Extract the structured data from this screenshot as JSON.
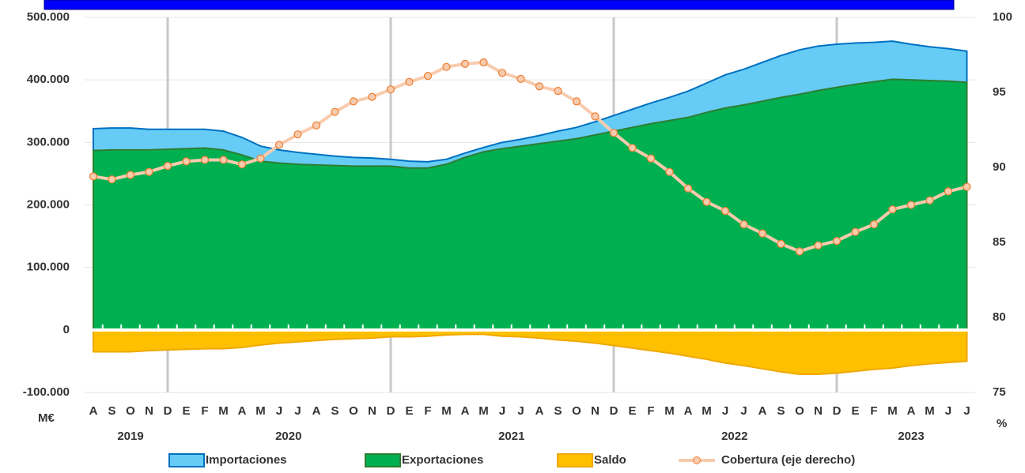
{
  "chart_data": {
    "type": "area",
    "categories": [
      "A",
      "S",
      "O",
      "N",
      "D",
      "E",
      "F",
      "M",
      "A",
      "M",
      "J",
      "J",
      "A",
      "S",
      "O",
      "N",
      "D",
      "E",
      "F",
      "M",
      "A",
      "M",
      "J",
      "J",
      "A",
      "S",
      "O",
      "N",
      "D",
      "E",
      "F",
      "M",
      "A",
      "M",
      "J",
      "J",
      "A",
      "S",
      "O",
      "N",
      "D",
      "E",
      "F",
      "M",
      "A",
      "M",
      "J",
      "J"
    ],
    "years": [
      "2019",
      "2020",
      "2021",
      "2022",
      "2023"
    ],
    "y_unit": "M€",
    "y2_unit": "%",
    "series": [
      {
        "name": "Importaciones",
        "type": "area",
        "color": "#66ccf5",
        "stroke": "#0070c0",
        "values": [
          322000,
          323000,
          323000,
          321000,
          321000,
          321000,
          321000,
          318000,
          308000,
          294000,
          288000,
          284000,
          281000,
          278000,
          276000,
          275000,
          273000,
          270000,
          269000,
          273000,
          283000,
          292000,
          300000,
          305000,
          311000,
          318000,
          324000,
          333000,
          343000,
          353000,
          363000,
          372000,
          382000,
          395000,
          408000,
          417000,
          428000,
          439000,
          448000,
          454000,
          457000,
          459000,
          460000,
          462000,
          457000,
          453000,
          450000,
          446000
        ]
      },
      {
        "name": "Exportaciones",
        "type": "area",
        "color": "#00b050",
        "stroke": "#2e7d32",
        "values": [
          287000,
          288000,
          288000,
          288000,
          289000,
          290000,
          291000,
          288000,
          280000,
          270000,
          267000,
          265000,
          264000,
          263000,
          262000,
          262000,
          262000,
          259000,
          259000,
          265000,
          276000,
          285000,
          290000,
          294000,
          298000,
          302000,
          306000,
          312000,
          318000,
          324000,
          330000,
          335000,
          340000,
          348000,
          355000,
          360000,
          366000,
          372000,
          377000,
          383000,
          388000,
          393000,
          397000,
          401000,
          400000,
          399000,
          398000,
          396000
        ]
      },
      {
        "name": "Saldo",
        "type": "area",
        "color": "#ffc000",
        "stroke": "#f0a800",
        "values": [
          -35000,
          -35000,
          -35000,
          -33000,
          -32000,
          -31000,
          -30000,
          -30000,
          -28000,
          -24000,
          -21000,
          -19000,
          -17000,
          -15000,
          -14000,
          -13000,
          -11000,
          -11000,
          -10000,
          -8000,
          -7000,
          -7000,
          -10000,
          -11000,
          -13000,
          -16000,
          -18000,
          -21000,
          -25000,
          -29000,
          -33000,
          -37000,
          -42000,
          -47000,
          -53000,
          -57000,
          -62000,
          -67000,
          -71000,
          -71000,
          -69000,
          -66000,
          -63000,
          -61000,
          -57000,
          -54000,
          -52000,
          -50000
        ]
      },
      {
        "name": "Cobertura (eje derecho)",
        "type": "line",
        "axis": "y2",
        "color": "#f8cbad",
        "marker_stroke": "#ed7d31",
        "values": [
          89.4,
          89.2,
          89.5,
          89.7,
          90.1,
          90.4,
          90.5,
          90.5,
          90.2,
          90.6,
          91.5,
          92.2,
          92.8,
          93.7,
          94.4,
          94.7,
          95.2,
          95.7,
          96.1,
          96.7,
          96.9,
          97.0,
          96.3,
          95.9,
          95.4,
          95.1,
          94.4,
          93.4,
          92.3,
          91.3,
          90.6,
          89.7,
          88.6,
          87.7,
          87.1,
          86.2,
          85.6,
          84.9,
          84.4,
          84.8,
          85.1,
          85.7,
          86.2,
          87.2,
          87.5,
          87.8,
          88.4,
          88.7
        ]
      }
    ],
    "ylim": [
      -100000,
      500000
    ],
    "yticks": [
      {
        "value": -100000,
        "label": "-100.000"
      },
      0,
      {
        "value": 100000,
        "label": "100.000"
      },
      {
        "value": 200000,
        "label": "200.000"
      },
      {
        "value": 300000,
        "label": "300.000"
      },
      {
        "value": 400000,
        "label": "400.000"
      },
      {
        "value": 500000,
        "label": "500.000"
      }
    ],
    "y2lim": [
      75,
      100
    ],
    "y2ticks": [
      75,
      80,
      85,
      90,
      95,
      100
    ],
    "grid": true,
    "legend": "bottom"
  }
}
